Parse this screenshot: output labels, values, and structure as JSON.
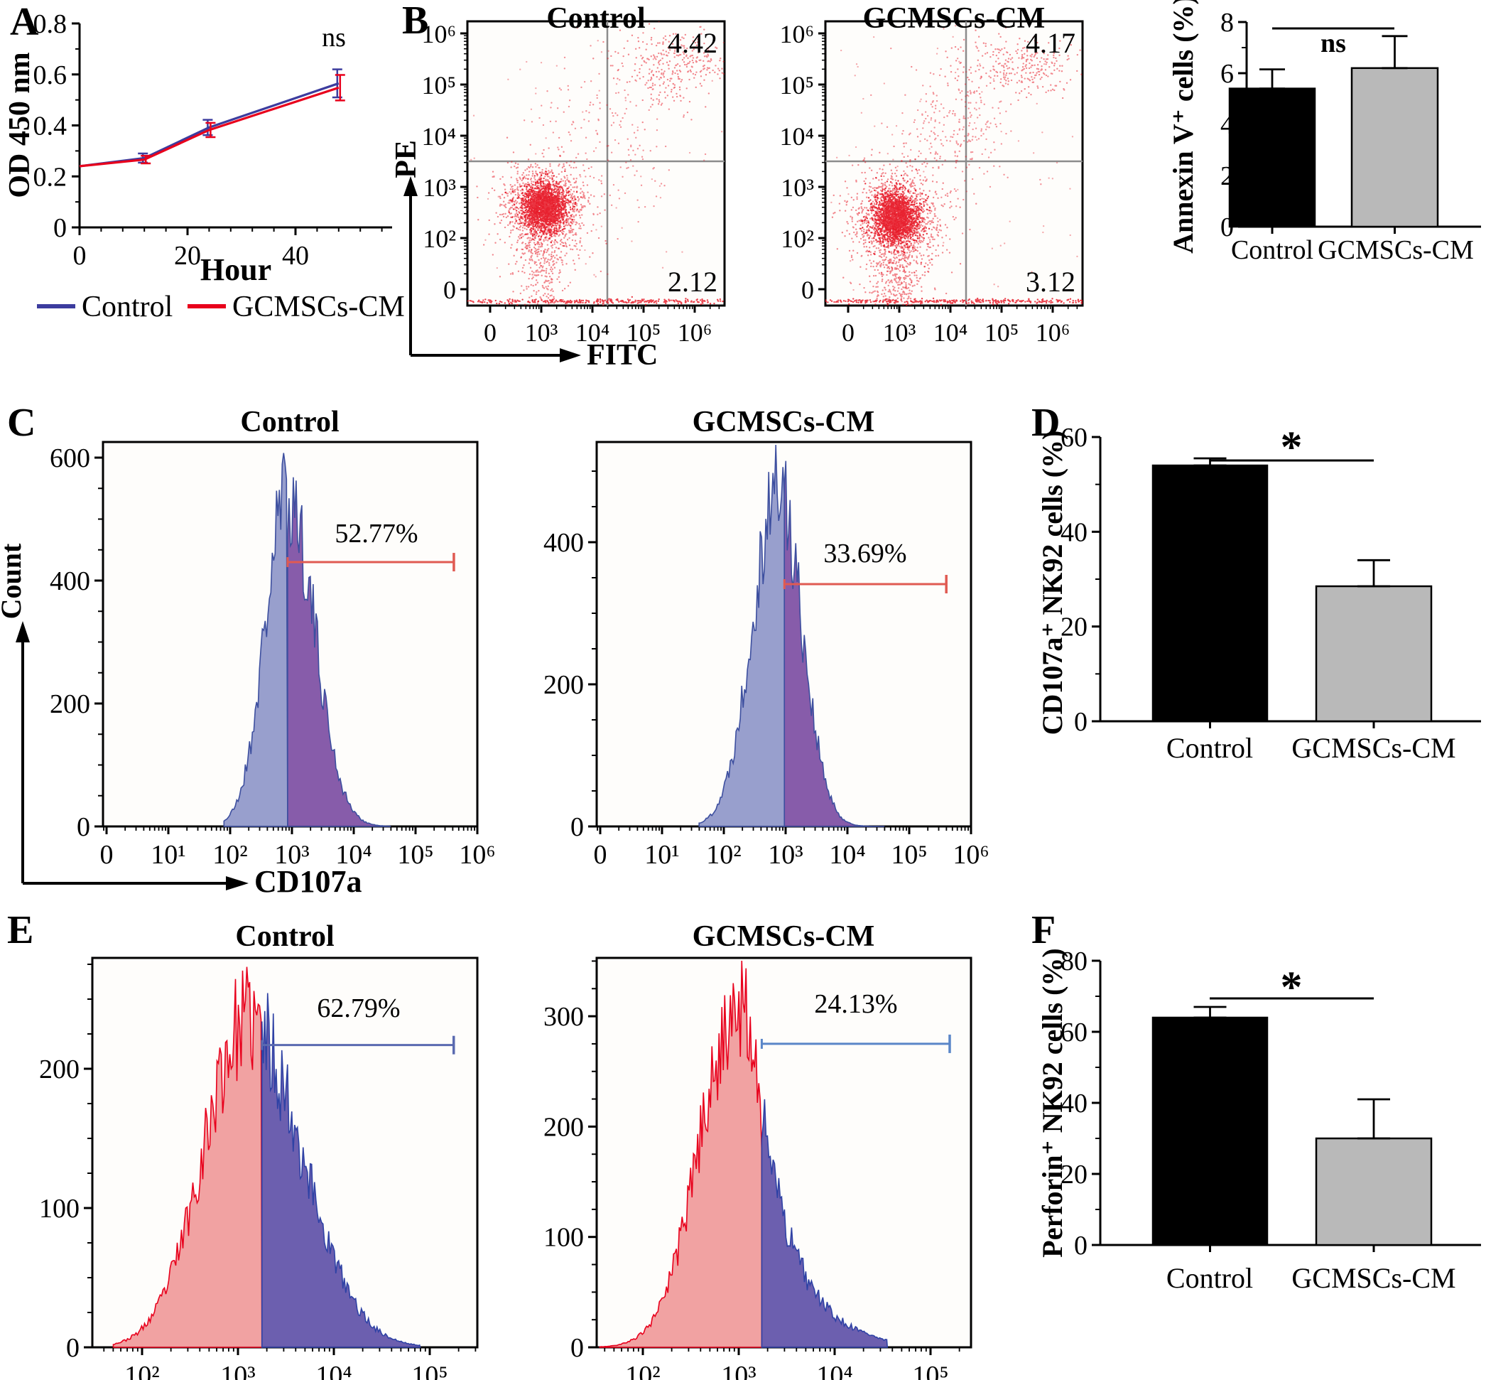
{
  "letters": {
    "A": "A",
    "B": "B",
    "C": "C",
    "D": "D",
    "E": "E",
    "F": "F"
  },
  "chart_data": [
    {
      "id": "A",
      "type": "line",
      "title": "",
      "xlabel": "Hour",
      "ylabel": "OD 450 nm",
      "annotation": "ns",
      "x": [
        0,
        12,
        24,
        48
      ],
      "series": [
        {
          "name": "Control",
          "color": "#3c3c9e",
          "values": [
            0.24,
            0.272,
            0.392,
            0.565
          ],
          "errors": [
            0,
            0.018,
            0.03,
            0.055
          ]
        },
        {
          "name": "GCMSCs-CM",
          "color": "#e8001c",
          "values": [
            0.24,
            0.266,
            0.382,
            0.548
          ],
          "errors": [
            0,
            0.015,
            0.028,
            0.05
          ]
        }
      ],
      "xlim": [
        0,
        50
      ],
      "ylim": [
        0,
        0.8
      ],
      "xticks": [
        0,
        20,
        40
      ],
      "yticks": [
        0,
        0.2,
        0.4,
        0.6,
        0.8
      ],
      "legend_position": "below",
      "grid": false
    },
    {
      "id": "B-Control",
      "type": "scatter",
      "title": "Control",
      "xlabel": "FITC",
      "ylabel": "PE",
      "xticks": [
        "0",
        "10³",
        "10⁴",
        "10⁵",
        "10⁶"
      ],
      "yticks": [
        "0",
        "10²",
        "10³",
        "10⁴",
        "10⁵",
        "10⁶"
      ],
      "quadrant_values": {
        "upper_right": "4.42",
        "lower_right": "2.12"
      },
      "point_color": "#e60f1e",
      "clusters": [
        {
          "fx": 0.3,
          "fy": 0.655,
          "sx": 0.042,
          "sy": 0.04,
          "n": 1700,
          "o": 0.85
        },
        {
          "fx": 0.3,
          "fy": 0.665,
          "sx": 0.085,
          "sy": 0.08,
          "n": 1300,
          "o": 0.5
        },
        {
          "fx": 0.29,
          "fy": 0.87,
          "sx": 0.05,
          "sy": 0.09,
          "n": 260,
          "o": 0.5
        },
        {
          "fx": 0.815,
          "fy": 0.155,
          "sx": 0.11,
          "sy": 0.065,
          "n": 330,
          "o": 0.5
        },
        {
          "fx": 0.55,
          "fy": 0.42,
          "sx": 0.14,
          "sy": 0.13,
          "n": 170,
          "o": 0.45
        },
        {
          "fx": 0.5,
          "fy": 0.5,
          "sx": 0.5,
          "sy": 0.42,
          "n": 130,
          "o": 0.35
        },
        {
          "fx": 0.55,
          "fy": 0.985,
          "sx": 0.38,
          "sy": 0.004,
          "n": 380,
          "o": 0.8
        }
      ]
    },
    {
      "id": "B-GCMSCs-CM",
      "type": "scatter",
      "title": "GCMSCs-CM",
      "xlabel": "FITC",
      "ylabel": "PE",
      "xticks": [
        "0",
        "10³",
        "10⁴",
        "10⁵",
        "10⁶"
      ],
      "yticks": [
        "0",
        "10²",
        "10³",
        "10⁴",
        "10⁵",
        "10⁶"
      ],
      "quadrant_values": {
        "upper_right": "4.17",
        "lower_right": "3.12"
      },
      "point_color": "#e60f1e",
      "clusters": [
        {
          "fx": 0.275,
          "fy": 0.69,
          "sx": 0.045,
          "sy": 0.045,
          "n": 1700,
          "o": 0.85
        },
        {
          "fx": 0.28,
          "fy": 0.7,
          "sx": 0.09,
          "sy": 0.088,
          "n": 1300,
          "o": 0.5
        },
        {
          "fx": 0.275,
          "fy": 0.915,
          "sx": 0.055,
          "sy": 0.075,
          "n": 320,
          "o": 0.5
        },
        {
          "fx": 0.755,
          "fy": 0.16,
          "sx": 0.13,
          "sy": 0.048,
          "n": 300,
          "o": 0.5
        },
        {
          "fx": 0.5,
          "fy": 0.38,
          "sx": 0.13,
          "sy": 0.11,
          "n": 260,
          "o": 0.45
        },
        {
          "fx": 0.5,
          "fy": 0.5,
          "sx": 0.5,
          "sy": 0.42,
          "n": 140,
          "o": 0.35
        },
        {
          "fx": 0.55,
          "fy": 0.985,
          "sx": 0.38,
          "sy": 0.004,
          "n": 380,
          "o": 0.8
        }
      ]
    },
    {
      "id": "B-bar",
      "type": "bar",
      "ylabel": "Annexin V⁺ cells (%)",
      "categories": [
        "Control",
        "GCMSCs-CM"
      ],
      "values": [
        5.4,
        6.2
      ],
      "errors": [
        0.75,
        1.25
      ],
      "bar_colors": [
        "#000000",
        "#b9b9b9"
      ],
      "ylim": [
        0,
        8
      ],
      "yticks": [
        0,
        2,
        4,
        6,
        8
      ],
      "sig": "ns"
    },
    {
      "id": "C-Control",
      "type": "histogram",
      "title": "Control",
      "xlabel": "CD107a",
      "ylabel": "Count",
      "xticks": [
        "0",
        "10¹",
        "10²",
        "10³",
        "10⁴",
        "10⁵",
        "10⁶"
      ],
      "yticks": [
        0,
        200,
        400,
        600
      ],
      "gate_label": "52.77%",
      "shape": {
        "peak": 540,
        "peak_pos": 2.93,
        "sigma_l": 0.36,
        "sigma_r": 0.43,
        "start": 1.9,
        "end": 4.6
      },
      "gate": {
        "pos": 2.93,
        "end": 5.62,
        "level": 430
      },
      "colors": {
        "left_stroke": "#3d4f9f",
        "left_fill": "#8f97c9",
        "right_stroke": "#3d4f9f",
        "right_fill": "#7d4ea3",
        "line": "#e05a52"
      }
    },
    {
      "id": "C-GCMSCs-CM",
      "type": "histogram",
      "title": "GCMSCs-CM",
      "xlabel": "CD107a",
      "ylabel": "Count",
      "xticks": [
        "0",
        "10¹",
        "10²",
        "10³",
        "10⁴",
        "10⁵",
        "10⁶"
      ],
      "yticks": [
        0,
        200,
        400
      ],
      "gate_label": "33.69%",
      "shape": {
        "peak": 480,
        "peak_pos": 2.88,
        "sigma_l": 0.42,
        "sigma_r": 0.38,
        "start": 1.6,
        "end": 4.6
      },
      "gate": {
        "pos": 2.98,
        "end": 5.6,
        "level": 341
      },
      "colors": {
        "left_stroke": "#3d4f9f",
        "left_fill": "#8f97c9",
        "right_stroke": "#3d4f9f",
        "right_fill": "#7d4ea3",
        "line": "#e05a52"
      }
    },
    {
      "id": "D",
      "type": "bar",
      "ylabel": "CD107a⁺ NK92 cells (%)",
      "categories": [
        "Control",
        "GCMSCs-CM"
      ],
      "values": [
        54,
        28.5
      ],
      "errors": [
        1.5,
        5.5
      ],
      "bar_colors": [
        "#000000",
        "#b9b9b9"
      ],
      "ylim": [
        0,
        60
      ],
      "yticks": [
        0,
        20,
        40,
        60
      ],
      "sig": "*"
    },
    {
      "id": "E-Control",
      "type": "histogram",
      "title": "Control",
      "xlabel": "",
      "ylabel": "",
      "xticks": [
        "10²",
        "10³",
        "10⁴",
        "10⁵"
      ],
      "yticks": [
        0,
        100,
        200
      ],
      "gate_label": "62.79%",
      "shape": {
        "peak": 235,
        "peak_pos": 1.1,
        "sigma_l": 0.46,
        "sigma_r": 0.56,
        "start": -0.3,
        "end": 2.9
      },
      "gate": {
        "pos": 1.25,
        "end": 3.25,
        "level": 217
      },
      "colors": {
        "left_stroke": "#e8001c",
        "left_fill": "#f09a9a",
        "right_stroke": "#2f42a5",
        "right_fill": "#5f51a8",
        "line": "#5a6ab0"
      }
    },
    {
      "id": "E-GCMSCs-CM",
      "type": "histogram",
      "title": "GCMSCs-CM",
      "xlabel": "",
      "ylabel": "",
      "xticks": [
        "10²",
        "10³",
        "10⁴",
        "10⁵"
      ],
      "yticks": [
        0,
        100,
        200,
        300
      ],
      "gate_label": "24.13%",
      "shape": {
        "peak": 310,
        "peak_pos": 1.0,
        "sigma_l": 0.4,
        "sigma_r": 0.28,
        "start": -0.45,
        "end": 2.55,
        "tail_from": 1.24,
        "tail_tau": 0.38
      },
      "gate": {
        "pos": 1.24,
        "end": 3.2,
        "level": 275
      },
      "colors": {
        "left_stroke": "#e8001c",
        "left_fill": "#f09a9a",
        "right_stroke": "#2f42a5",
        "right_fill": "#5f51a8",
        "line": "#5a86c8"
      }
    },
    {
      "id": "F",
      "type": "bar",
      "ylabel": "Perforin⁺ NK92 cells (%)",
      "categories": [
        "Control",
        "GCMSCs-CM"
      ],
      "values": [
        64,
        30
      ],
      "errors": [
        3,
        11
      ],
      "bar_colors": [
        "#000000",
        "#b9b9b9"
      ],
      "ylim": [
        0,
        80
      ],
      "yticks": [
        0,
        20,
        40,
        60,
        80
      ],
      "sig": "*"
    }
  ]
}
